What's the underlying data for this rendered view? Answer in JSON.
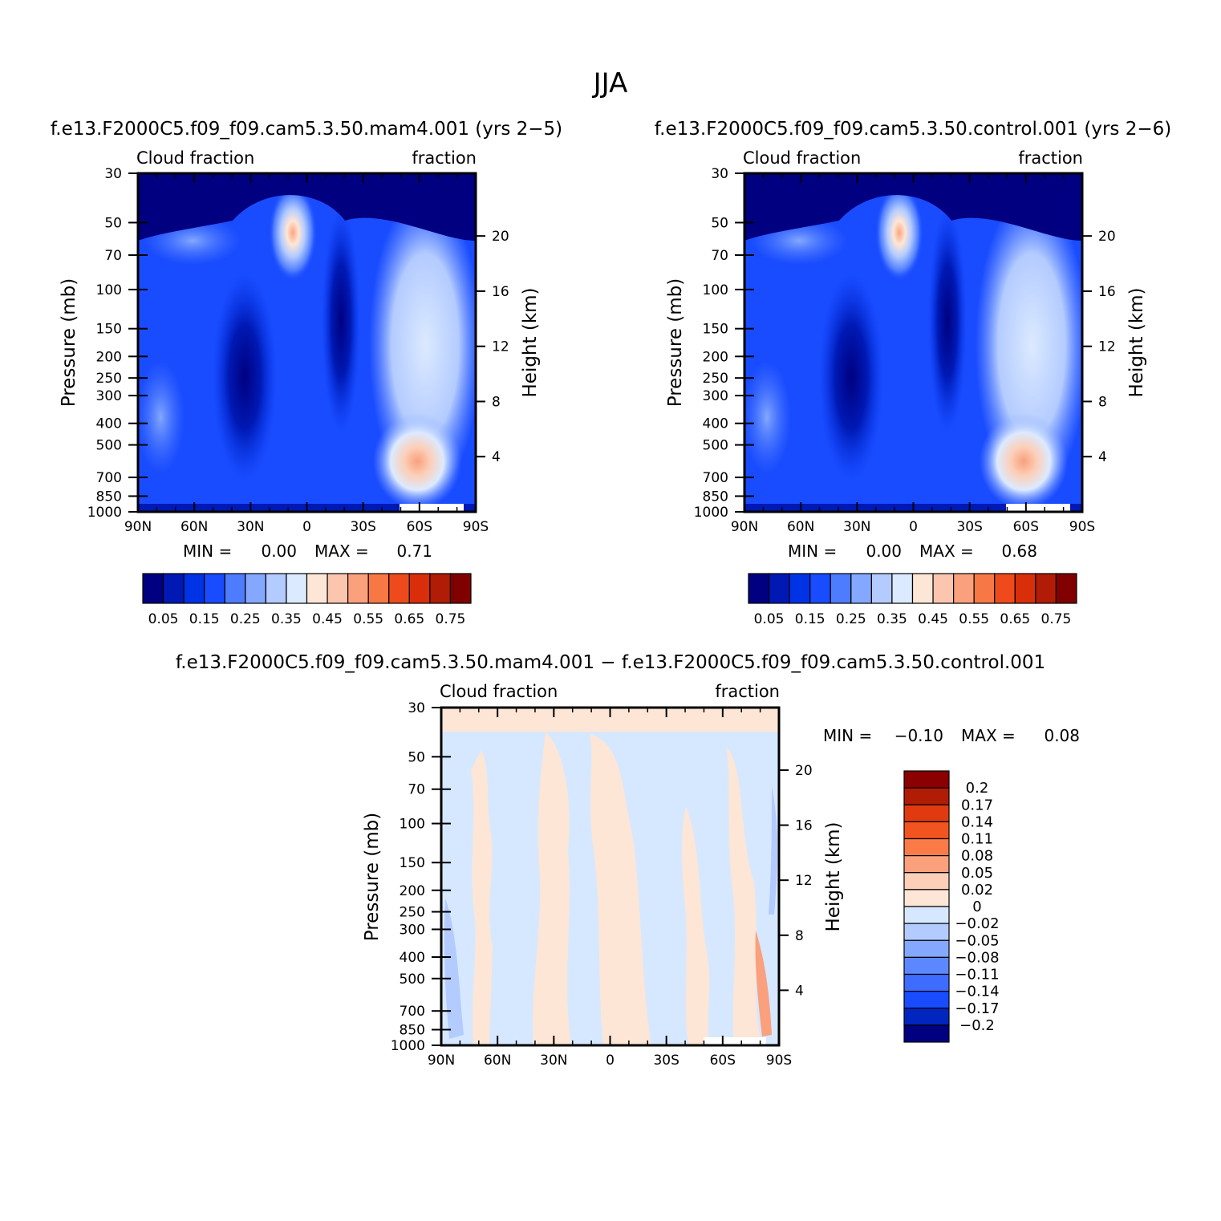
{
  "page_title": "JJA",
  "colors": {
    "abs_palette": [
      "#000080",
      "#0019b4",
      "#0033e6",
      "#1a4cff",
      "#4d7cff",
      "#84a8ff",
      "#b3cbff",
      "#dceaff",
      "#fde6d6",
      "#fcc5ae",
      "#faa07c",
      "#f87845",
      "#ee4a1c",
      "#d92e0a",
      "#b01c05",
      "#800000"
    ],
    "diff_palette": [
      "#000080",
      "#0026bf",
      "#1a4cff",
      "#3d6cff",
      "#5c88ff",
      "#84a8ff",
      "#b3cbff",
      "#d6e8ff",
      "#fde6d6",
      "#fccfb8",
      "#faa07c",
      "#fb7b48",
      "#f25420",
      "#e23a10",
      "#b01c05",
      "#8b0000"
    ]
  },
  "chart_data": [
    {
      "type": "heatmap",
      "title": "f.e13.F2000C5.f09_f09.cam5.3.50.mam4.001 (yrs 2−5)",
      "left_label": "Cloud fraction",
      "right_label": "fraction",
      "ylabel": "Pressure (mb)",
      "y2label": "Height (km)",
      "x_ticks": [
        "90N",
        "60N",
        "30N",
        "0",
        "30S",
        "60S",
        "90S"
      ],
      "y_ticks": [
        "30",
        "50",
        "70",
        "100",
        "150",
        "200",
        "250",
        "300",
        "400",
        "500",
        "700",
        "850",
        "1000"
      ],
      "y_tick_values": [
        30,
        50,
        70,
        100,
        150,
        200,
        250,
        300,
        400,
        500,
        700,
        850,
        1000
      ],
      "y2_ticks": [
        "20",
        "16",
        "12",
        "8",
        "4"
      ],
      "y2_tick_values": [
        20,
        16,
        12,
        8,
        4
      ],
      "xlim": [
        90,
        -90
      ],
      "ylim": [
        30,
        1000
      ],
      "y_scale": "log",
      "min_label": "MIN =",
      "min_value": "0.00",
      "max_label": "MAX =",
      "max_value": "0.71",
      "colorbar_labels": [
        "0.05",
        "0.15",
        "0.25",
        "0.35",
        "0.45",
        "0.55",
        "0.65",
        "0.75"
      ],
      "legend_position": "bottom"
    },
    {
      "type": "heatmap",
      "title": "f.e13.F2000C5.f09_f09.cam5.3.50.control.001 (yrs 2−6)",
      "left_label": "Cloud fraction",
      "right_label": "fraction",
      "ylabel": "Pressure (mb)",
      "y2label": "Height (km)",
      "x_ticks": [
        "90N",
        "60N",
        "30N",
        "0",
        "30S",
        "60S",
        "90S"
      ],
      "y_ticks": [
        "30",
        "50",
        "70",
        "100",
        "150",
        "200",
        "250",
        "300",
        "400",
        "500",
        "700",
        "850",
        "1000"
      ],
      "y_tick_values": [
        30,
        50,
        70,
        100,
        150,
        200,
        250,
        300,
        400,
        500,
        700,
        850,
        1000
      ],
      "y2_ticks": [
        "20",
        "16",
        "12",
        "8",
        "4"
      ],
      "y2_tick_values": [
        20,
        16,
        12,
        8,
        4
      ],
      "xlim": [
        90,
        -90
      ],
      "ylim": [
        30,
        1000
      ],
      "y_scale": "log",
      "min_label": "MIN =",
      "min_value": "0.00",
      "max_label": "MAX =",
      "max_value": "0.68",
      "colorbar_labels": [
        "0.05",
        "0.15",
        "0.25",
        "0.35",
        "0.45",
        "0.55",
        "0.65",
        "0.75"
      ],
      "legend_position": "bottom"
    },
    {
      "type": "heatmap",
      "title": "f.e13.F2000C5.f09_f09.cam5.3.50.mam4.001 − f.e13.F2000C5.f09_f09.cam5.3.50.control.001",
      "left_label": "Cloud fraction",
      "right_label": "fraction",
      "ylabel": "Pressure (mb)",
      "y2label": "Height (km)",
      "x_ticks": [
        "90N",
        "60N",
        "30N",
        "0",
        "30S",
        "60S",
        "90S"
      ],
      "y_ticks": [
        "30",
        "50",
        "70",
        "100",
        "150",
        "200",
        "250",
        "300",
        "400",
        "500",
        "700",
        "850",
        "1000"
      ],
      "y_tick_values": [
        30,
        50,
        70,
        100,
        150,
        200,
        250,
        300,
        400,
        500,
        700,
        850,
        1000
      ],
      "y2_ticks": [
        "20",
        "16",
        "12",
        "8",
        "4"
      ],
      "y2_tick_values": [
        20,
        16,
        12,
        8,
        4
      ],
      "xlim": [
        90,
        -90
      ],
      "ylim": [
        30,
        1000
      ],
      "y_scale": "log",
      "min_label": "MIN =",
      "min_value": "−0.10",
      "max_label": "MAX =",
      "max_value": "0.08",
      "colorbar_labels": [
        "0.2",
        "0.17",
        "0.14",
        "0.11",
        "0.08",
        "0.05",
        "0.02",
        "0",
        "−0.02",
        "−0.05",
        "−0.08",
        "−0.11",
        "−0.14",
        "−0.17",
        "−0.2"
      ],
      "legend_position": "right"
    }
  ]
}
